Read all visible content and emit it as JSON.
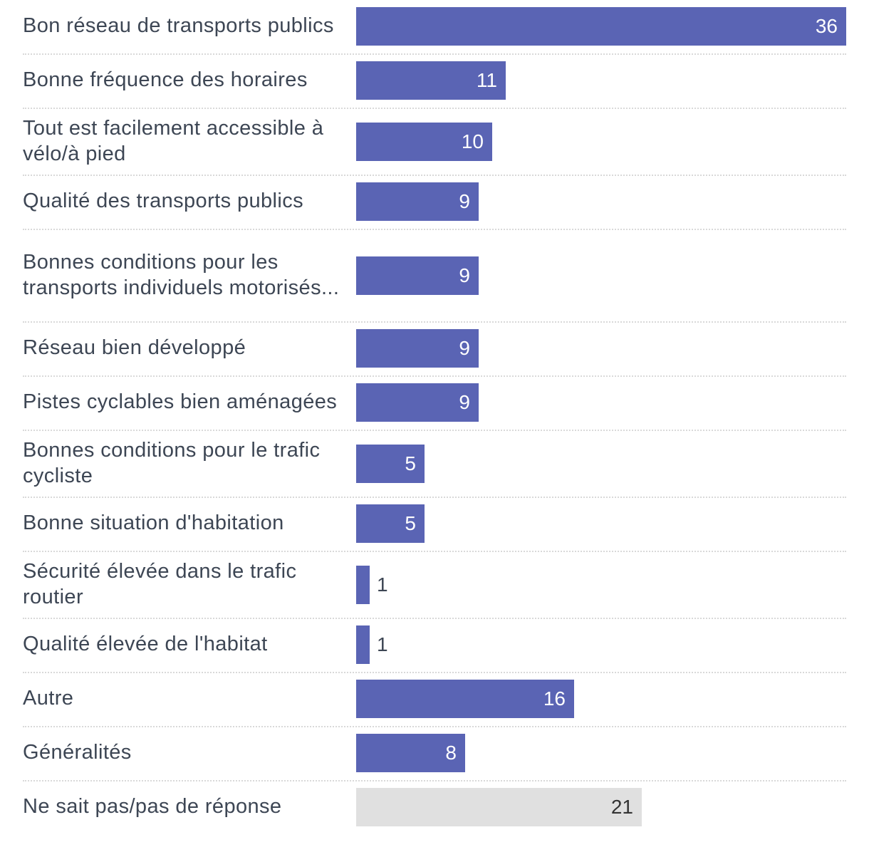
{
  "chart_data": {
    "type": "bar",
    "orientation": "horizontal",
    "title": "",
    "xlabel": "",
    "ylabel": "",
    "xlim": [
      0,
      36
    ],
    "grid": false,
    "legend": "none",
    "categories": [
      "Bon réseau de transports publics",
      "Bonne fréquence des horaires",
      "Tout est facilement accessible à vélo/à pied",
      "Qualité des transports publics",
      "Bonnes conditions pour les transports individuels motorisés...",
      "Réseau bien développé",
      "Pistes cyclables bien aménagées",
      "Bonnes conditions pour le trafic cycliste",
      "Bonne situation d'habitation",
      "Sécurité élevée dans le trafic routier",
      "Qualité élevée de l'habitat",
      "Autre",
      "Généralités",
      "Ne sait pas/pas de réponse"
    ],
    "values": [
      36,
      11,
      10,
      9,
      9,
      9,
      9,
      5,
      5,
      1,
      1,
      16,
      8,
      21
    ],
    "value_labels": [
      "36",
      "11",
      "10",
      "9",
      "9",
      "9",
      "9",
      "5",
      "5",
      "1",
      "1",
      "16",
      "8",
      "21"
    ],
    "bar_colors": [
      "#5a64b4",
      "#5a64b4",
      "#5a64b4",
      "#5a64b4",
      "#5a64b4",
      "#5a64b4",
      "#5a64b4",
      "#5a64b4",
      "#5a64b4",
      "#5a64b4",
      "#5a64b4",
      "#5a64b4",
      "#5a64b4",
      "#e0e0e0"
    ]
  },
  "colors": {
    "bar_primary": "#5a64b4",
    "bar_neutral": "#e0e0e0",
    "label_text": "#3d4654",
    "value_on_primary": "#ffffff",
    "value_on_neutral": "#333333",
    "value_outside": "#3d4654"
  }
}
